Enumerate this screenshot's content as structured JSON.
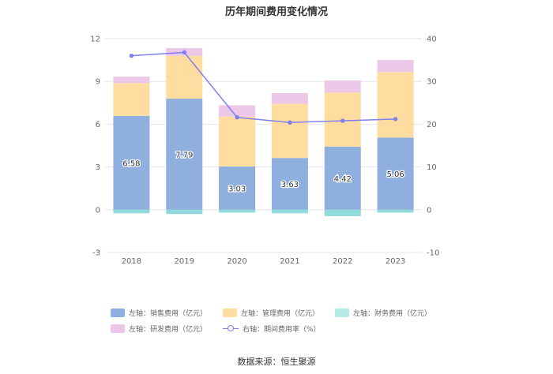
{
  "chart_data": {
    "type": "bar",
    "title": "历年期间费用变化情况",
    "categories": [
      "2018",
      "2019",
      "2020",
      "2021",
      "2022",
      "2023"
    ],
    "series": [
      {
        "name": "左轴：销售费用（亿元）",
        "axis": "left",
        "stack": true,
        "color": "#8fb0df",
        "values": [
          6.58,
          7.79,
          3.03,
          3.63,
          4.42,
          5.06
        ],
        "labels": [
          "6.58",
          "7.79",
          "3.03",
          "3.63",
          "4.42",
          "5.06"
        ]
      },
      {
        "name": "左轴：管理费用（亿元）",
        "axis": "left",
        "stack": true,
        "color": "#ffdca0",
        "values": [
          2.3,
          3.0,
          3.5,
          3.8,
          3.8,
          4.6
        ]
      },
      {
        "name": "左轴：财务费用（亿元）",
        "axis": "left",
        "stack": true,
        "color": "#8fdbdc",
        "values": [
          -0.25,
          -0.3,
          -0.2,
          -0.25,
          -0.45,
          -0.2
        ]
      },
      {
        "name": "左轴：研发费用（亿元）",
        "axis": "left",
        "stack": true,
        "color": "#ecc8e8",
        "values": [
          0.45,
          0.55,
          0.8,
          0.75,
          0.85,
          0.85
        ]
      },
      {
        "name": "右轴：期间费用率（%）",
        "axis": "right",
        "type": "line",
        "color": "#7f7ff0",
        "values": [
          36.0,
          36.8,
          21.6,
          20.4,
          20.8,
          21.2
        ]
      }
    ],
    "left_axis": {
      "ylim": [
        -3,
        12
      ],
      "ticks": [
        "12",
        "9",
        "6",
        "3",
        "0",
        "-3"
      ]
    },
    "right_axis": {
      "ylim": [
        -10,
        40
      ],
      "ticks": [
        "40",
        "30",
        "20",
        "10",
        "0",
        "-10"
      ]
    },
    "legend": {
      "placement": "bottom",
      "items": [
        "左轴：销售费用（亿元）",
        "左轴：管理费用（亿元）",
        "左轴：财务费用（亿元）",
        "左轴：研发费用（亿元）",
        "右轴：期间费用率（%）"
      ]
    }
  },
  "source": "数据来源：恒生聚源"
}
